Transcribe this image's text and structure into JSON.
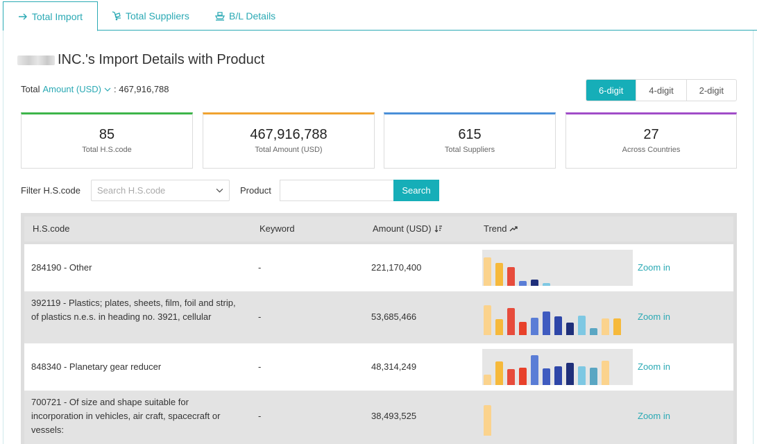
{
  "tabs": [
    {
      "label": "Total Import",
      "icon": "arrow-right-icon",
      "active": true
    },
    {
      "label": "Total Suppliers",
      "icon": "hand-truck-icon",
      "active": false
    },
    {
      "label": "B/L Details",
      "icon": "ship-icon",
      "active": false
    }
  ],
  "title": "INC.'s Import Details with Product",
  "total": {
    "prefix": "Total",
    "metric": "Amount (USD)",
    "value": ": 467,916,788"
  },
  "digits": {
    "options": [
      "6-digit",
      "4-digit",
      "2-digit"
    ],
    "selected": "6-digit"
  },
  "cards": [
    {
      "value": "85",
      "label": "Total H.S.code",
      "color": "#3db54a"
    },
    {
      "value": "467,916,788",
      "label": "Total Amount (USD)",
      "color": "#f0a330"
    },
    {
      "value": "615",
      "label": "Total Suppliers",
      "color": "#4a8fd8"
    },
    {
      "value": "27",
      "label": "Across Countries",
      "color": "#a04cc8"
    }
  ],
  "filter": {
    "hs_label": "Filter H.S.code",
    "hs_placeholder": "Search H.S.code",
    "product_label": "Product",
    "product_value": "",
    "search_label": "Search"
  },
  "table": {
    "headers": {
      "code": "H.S.code",
      "keyword": "Keyword",
      "amount": "Amount (USD)",
      "trend": "Trend"
    },
    "zoom_label": "Zoom in",
    "trend_colors": [
      "#fbd38d",
      "#f6b93b",
      "#e74c3c",
      "#e8412a",
      "#5a7dd6",
      "#3f5bc0",
      "#2e46a8",
      "#1f2f7a",
      "#7ec8e3",
      "#5aa6c3"
    ],
    "rows": [
      {
        "code": "284190 - Other",
        "keyword": "-",
        "amount": "221,170,400",
        "trend_bg": true,
        "bars": [
          {
            "c": 0,
            "v": 0.86
          },
          {
            "c": 1,
            "v": 0.68
          },
          {
            "c": 2,
            "v": 0.57
          },
          {
            "c": 4,
            "v": 0.15
          },
          {
            "c": 7,
            "v": 0.18
          },
          {
            "c": 8,
            "v": 0.09
          }
        ]
      },
      {
        "code": "392119 - Plastics; plates, sheets, film, foil and strip, of plastics n.e.s. in heading no. 3921, cellular",
        "keyword": "-",
        "amount": "53,685,466",
        "trend_bg": false,
        "bars": [
          {
            "c": 0,
            "v": 0.89
          },
          {
            "c": 1,
            "v": 0.48
          },
          {
            "c": 2,
            "v": 0.82
          },
          {
            "c": 3,
            "v": 0.4
          },
          {
            "c": 4,
            "v": 0.52
          },
          {
            "c": 5,
            "v": 0.7
          },
          {
            "c": 6,
            "v": 0.57
          },
          {
            "c": 7,
            "v": 0.38
          },
          {
            "c": 8,
            "v": 0.59
          },
          {
            "c": 9,
            "v": 0.2
          },
          {
            "c": 0,
            "v": 0.5
          },
          {
            "c": 1,
            "v": 0.5
          }
        ]
      },
      {
        "code": "848340 - Planetary gear reducer",
        "keyword": "-",
        "amount": "48,314,249",
        "trend_bg": true,
        "bars": [
          {
            "c": 0,
            "v": 0.32
          },
          {
            "c": 1,
            "v": 0.7
          },
          {
            "c": 2,
            "v": 0.48
          },
          {
            "c": 3,
            "v": 0.52
          },
          {
            "c": 4,
            "v": 0.89
          },
          {
            "c": 5,
            "v": 0.5
          },
          {
            "c": 6,
            "v": 0.57
          },
          {
            "c": 7,
            "v": 0.66
          },
          {
            "c": 8,
            "v": 0.57
          },
          {
            "c": 9,
            "v": 0.52
          },
          {
            "c": 0,
            "v": 0.73
          }
        ]
      },
      {
        "code": "700721 - Of size and shape suitable for incorporation in vehicles, air craft, spacecraft or vessels:",
        "keyword": "-",
        "amount": "38,493,525",
        "trend_bg": false,
        "bars": [
          {
            "c": 0,
            "v": 0.91
          }
        ]
      }
    ]
  }
}
